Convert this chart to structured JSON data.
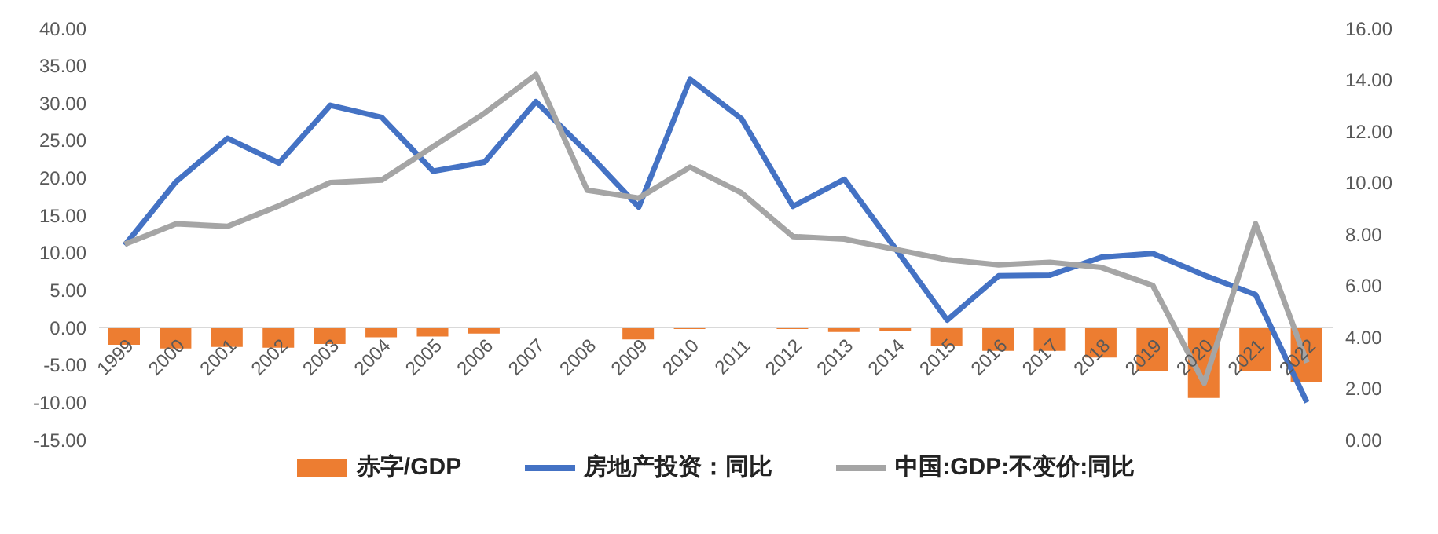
{
  "chart_data": {
    "type": "line",
    "categories": [
      "1999",
      "2000",
      "2001",
      "2002",
      "2003",
      "2004",
      "2005",
      "2006",
      "2007",
      "2008",
      "2009",
      "2010",
      "2011",
      "2012",
      "2013",
      "2014",
      "2015",
      "2016",
      "2017",
      "2018",
      "2019",
      "2020",
      "2021",
      "2022"
    ],
    "series": [
      {
        "name": "赤字/GDP",
        "type": "bar",
        "color": "#ed7d31",
        "values": [
          -2.3,
          -2.8,
          -2.6,
          -2.7,
          -2.2,
          -1.3,
          -1.2,
          -0.8,
          0,
          0,
          -1.6,
          -0.2,
          0,
          -0.2,
          -0.6,
          -0.5,
          -2.4,
          -3.1,
          -3.1,
          -4.0,
          -5.8,
          -9.4,
          -5.8,
          -7.3
        ]
      },
      {
        "name": "房地产投资：同比",
        "color": "#4472c4",
        "values": [
          11.0,
          19.5,
          25.3,
          22.0,
          29.7,
          28.1,
          20.9,
          22.1,
          30.2,
          23.4,
          16.1,
          33.2,
          27.9,
          16.2,
          19.8,
          10.5,
          1.0,
          6.9,
          7.0,
          9.4,
          9.9,
          7.0,
          4.4,
          -10.0
        ]
      },
      {
        "name": "中国:GDP:不变价:同比",
        "axis": "y2",
        "color": "#a5a5a5",
        "values": [
          7.6,
          8.4,
          8.3,
          9.1,
          10.0,
          10.1,
          11.4,
          12.7,
          14.2,
          9.7,
          9.4,
          10.6,
          9.6,
          7.9,
          7.8,
          7.4,
          7.0,
          6.8,
          6.9,
          6.7,
          6.0,
          2.2,
          8.4,
          3.0
        ]
      }
    ],
    "ylim": [
      -15,
      40
    ],
    "yticks": [
      {
        "value": -15,
        "label": "-15.00"
      },
      {
        "value": -10,
        "label": "-10.00"
      },
      {
        "value": -5,
        "label": "-5.00"
      },
      {
        "value": 0,
        "label": "0.00"
      },
      {
        "value": 5,
        "label": "5.00"
      },
      {
        "value": 10,
        "label": "10.00"
      },
      {
        "value": 15,
        "label": "15.00"
      },
      {
        "value": 20,
        "label": "20.00"
      },
      {
        "value": 25,
        "label": "25.00"
      },
      {
        "value": 30,
        "label": "30.00"
      },
      {
        "value": 35,
        "label": "35.00"
      },
      {
        "value": 40,
        "label": "40.00"
      }
    ],
    "y2lim": [
      0,
      16
    ],
    "y2ticks": [
      {
        "value": 0,
        "label": "0.00"
      },
      {
        "value": 2,
        "label": "2.00"
      },
      {
        "value": 4,
        "label": "4.00"
      },
      {
        "value": 6,
        "label": "6.00"
      },
      {
        "value": 8,
        "label": "8.00"
      },
      {
        "value": 10,
        "label": "10.00"
      },
      {
        "value": 12,
        "label": "12.00"
      },
      {
        "value": 14,
        "label": "14.00"
      },
      {
        "value": 16,
        "label": "16.00"
      }
    ],
    "legend": "bottom",
    "marker": "none",
    "line_style": "solid",
    "grid": false
  }
}
